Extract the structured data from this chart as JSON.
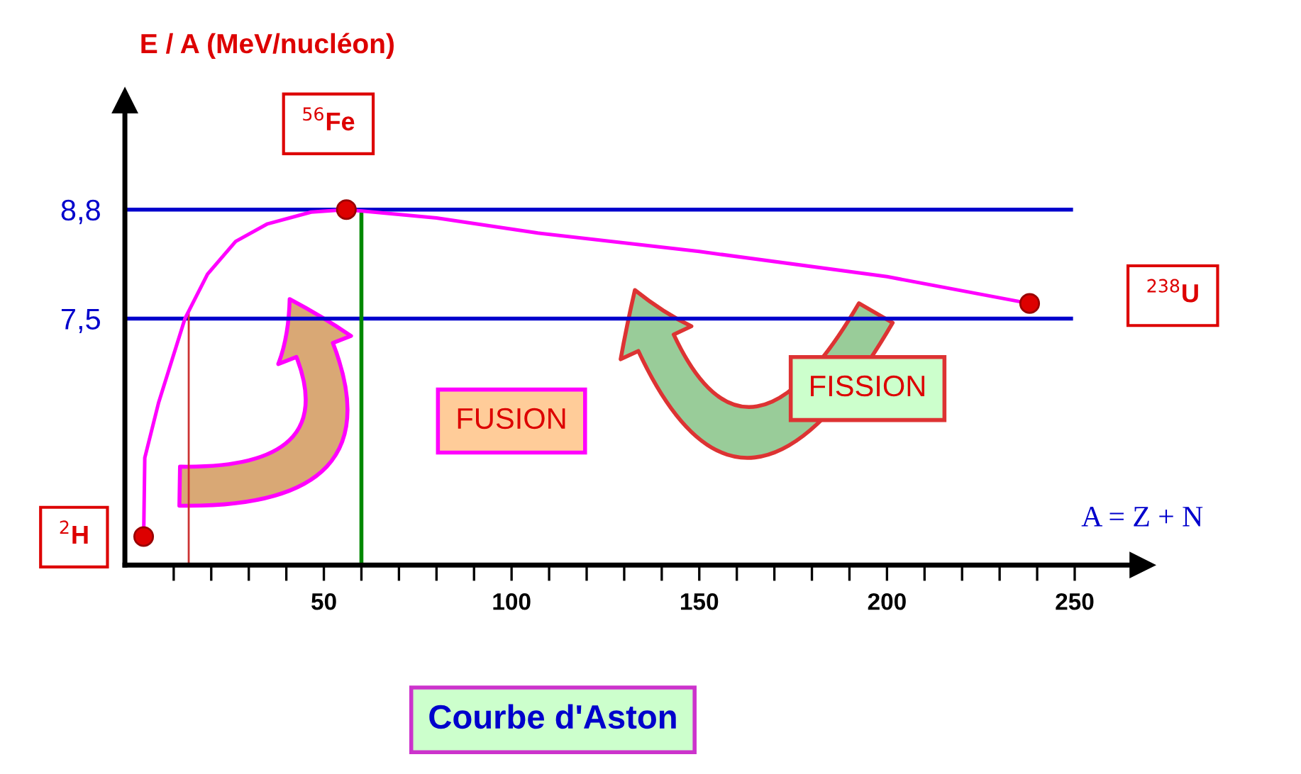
{
  "chart_data": {
    "type": "line",
    "title": "Courbe d'Aston",
    "xlabel": "A = Z + N",
    "ylabel": "E / A (MeV/nucléon)",
    "series": [
      {
        "color": "#ff00ff",
        "x": [
          2,
          2.3,
          6,
          13,
          19,
          26.5,
          35,
          46.6,
          56,
          80,
          107,
          150,
          200,
          238
        ],
        "values": [
          4.9,
          5.84,
          6.5,
          7.5,
          8.03,
          8.42,
          8.63,
          8.77,
          8.8,
          8.7,
          8.52,
          8.3,
          8.0,
          7.68
        ]
      },
      {
        "type": "scatter",
        "color": "#dd0000",
        "x": [
          2,
          56,
          238
        ],
        "values": [
          4.9,
          8.8,
          7.68
        ],
        "marker": "circle"
      }
    ],
    "xlim": [
      -3,
      268
    ],
    "ylim": [
      4.56,
      10.1
    ],
    "xticks": [
      {
        "value": 10,
        "label": null
      },
      {
        "value": 20,
        "label": null
      },
      {
        "value": 30,
        "label": null
      },
      {
        "value": 40,
        "label": null
      },
      50,
      {
        "value": 60,
        "label": null
      },
      {
        "value": 70,
        "label": null
      },
      {
        "value": 80,
        "label": null
      },
      {
        "value": 90,
        "label": null
      },
      100,
      {
        "value": 110,
        "label": null
      },
      {
        "value": 120,
        "label": null
      },
      {
        "value": 130,
        "label": null
      },
      {
        "value": 140,
        "label": null
      },
      150,
      {
        "value": 160,
        "label": null
      },
      {
        "value": 170,
        "label": null
      },
      {
        "value": 180,
        "label": null
      },
      {
        "value": 190,
        "label": null
      },
      200,
      {
        "value": 210,
        "label": null
      },
      {
        "value": 220,
        "label": null
      },
      {
        "value": 230,
        "label": null
      },
      {
        "value": 240,
        "label": null
      },
      250
    ],
    "yticks": [
      {
        "value": 7.5,
        "label": "7,5"
      },
      {
        "value": 8.8,
        "label": "8,8"
      }
    ],
    "ref_lines": [
      {
        "axis": "y",
        "value": 8.8,
        "color": "#0000cc"
      },
      {
        "axis": "y",
        "value": 7.5,
        "color": "#0000cc"
      },
      {
        "axis": "x",
        "value": 14,
        "color": "#cc3333"
      },
      {
        "axis": "x",
        "value": 60,
        "color": "#008800"
      }
    ],
    "annotations": [
      "$^{2}$H",
      "$^{56}$Fe",
      "$^{238}$U",
      "FUSION",
      "FISSION"
    ],
    "grid": false,
    "legend": false
  }
}
